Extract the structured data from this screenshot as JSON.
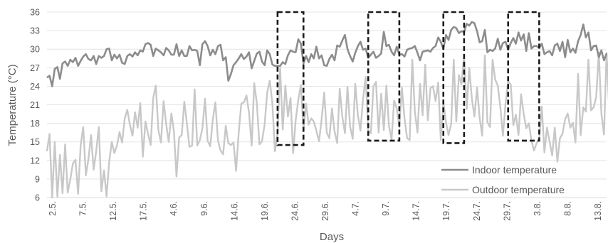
{
  "chart_data": {
    "type": "line",
    "title": "",
    "xlabel": "Days",
    "ylabel": "Temperature (°C)",
    "ylim": [
      6,
      36
    ],
    "yticks": [
      "6",
      "9",
      "12",
      "15",
      "18",
      "21",
      "24",
      "27",
      "30",
      "33",
      "36"
    ],
    "xticks": [
      "2.5.",
      "7.5.",
      "12.5.",
      "17.5.",
      "4.6.",
      "9.6.",
      "14.6.",
      "19.6.",
      "24.6.",
      "29.6.",
      "4.7.",
      "9.7.",
      "14.7.",
      "19.7.",
      "24.7.",
      "29.7.",
      "3.8.",
      "8.8.",
      "13.8."
    ],
    "grid": "horizontal",
    "legend": "bottom-right",
    "x_index_range": [
      0,
      216
    ],
    "series": [
      {
        "name": "Indoor temperature",
        "color": "#8c8c8c",
        "values": [
          25.4,
          25.7,
          24.0,
          26.8,
          27.1,
          25.2,
          27.7,
          28.0,
          27.3,
          28.3,
          27.9,
          28.6,
          27.3,
          28.1,
          28.8,
          29.2,
          28.4,
          28.2,
          28.9,
          27.6,
          28.9,
          28.6,
          28.9,
          30.0,
          30.1,
          28.2,
          29.1,
          28.5,
          29.1,
          27.8,
          27.6,
          28.9,
          29.2,
          28.8,
          29.5,
          29.0,
          29.8,
          29.6,
          30.8,
          31.0,
          30.7,
          28.9,
          30.1,
          29.8,
          29.5,
          29.0,
          30.2,
          29.8,
          29.1,
          29.1,
          30.8,
          28.9,
          29.8,
          28.9,
          28.9,
          30.5,
          29.8,
          29.9,
          29.7,
          27.4,
          30.8,
          31.3,
          30.5,
          29.0,
          29.9,
          29.2,
          30.5,
          30.7,
          28.2,
          28.7,
          24.9,
          26.0,
          27.4,
          27.9,
          28.5,
          29.2,
          28.4,
          28.8,
          29.5,
          26.9,
          28.1,
          29.3,
          29.6,
          28.0,
          27.4,
          29.8,
          29.2,
          27.5,
          27.3,
          27.3,
          27.3,
          27.9,
          27.6,
          29.0,
          29.8,
          29.6,
          29.5,
          31.6,
          30.9,
          27.7,
          28.9,
          27.9,
          29.2,
          28.5,
          30.4,
          28.5,
          29.0,
          27.4,
          27.3,
          28.4,
          29.1,
          28.2,
          30.6,
          30.4,
          31.4,
          32.3,
          30.0,
          28.9,
          28.0,
          29.4,
          30.5,
          31.2,
          29.9,
          30.1,
          28.6,
          29.1,
          29.6,
          28.6,
          28.9,
          29.3,
          32.8,
          30.5,
          30.7,
          29.6,
          29.0,
          30.4,
          29.1,
          29.2,
          28.8,
          29.9,
          30.1,
          30.2,
          30.5,
          29.4,
          28.2,
          29.6,
          29.7,
          29.8,
          29.6,
          30.2,
          30.5,
          31.9,
          31.2,
          30.0,
          32.3,
          31.5,
          33.1,
          33.6,
          33.4,
          32.6,
          32.9,
          32.8,
          34.1,
          33.8,
          34.4,
          34.2,
          32.9,
          31.1,
          31.3,
          33.1,
          29.5,
          29.9,
          29.7,
          30.1,
          31.7,
          29.9,
          31.0,
          31.2,
          29.9,
          31.0,
          31.8,
          30.9,
          32.7,
          31.4,
          32.4,
          29.7,
          32.6,
          30.1,
          30.5,
          30.5,
          30.2,
          30.9,
          29.2,
          29.5,
          29.7,
          29.0,
          30.6,
          30.9,
          29.7,
          31.2,
          28.7,
          31.5,
          29.5,
          30.1,
          29.4,
          31.3,
          32.3,
          34.0,
          31.9,
          32.7,
          29.8,
          30.5,
          30.6,
          28.7,
          29.8,
          28.2,
          29.3
        ]
      },
      {
        "name": "Outdoor temperature",
        "color": "#c8c8c8",
        "values": [
          13.5,
          16.3,
          6.0,
          15.0,
          6.1,
          12.9,
          6.7,
          14.6,
          6.8,
          9.0,
          11.5,
          12.1,
          6.6,
          14.5,
          17.4,
          9.6,
          12.2,
          16.1,
          10.5,
          13.5,
          17.4,
          7.0,
          10.4,
          6.2,
          11.7,
          15.0,
          13.2,
          14.4,
          16.6,
          14.9,
          18.8,
          20.2,
          17.8,
          16.0,
          19.8,
          17.3,
          21.3,
          12.6,
          18.3,
          16.3,
          14.5,
          22.1,
          24.1,
          16.9,
          14.9,
          21.6,
          17.9,
          15.0,
          19.6,
          16.7,
          9.4,
          15.7,
          16.1,
          21.5,
          18.0,
          14.2,
          14.4,
          23.5,
          14.4,
          15.3,
          17.2,
          22.0,
          15.2,
          14.3,
          18.6,
          21.4,
          15.2,
          13.6,
          13.0,
          17.6,
          14.8,
          14.5,
          14.9,
          10.3,
          16.5,
          21.2,
          21.4,
          22.5,
          19.7,
          14.4,
          24.5,
          21.2,
          14.6,
          15.1,
          17.8,
          23.0,
          24.9,
          21.2,
          13.5,
          16.4,
          27.0,
          17.0,
          24.1,
          19.1,
          22.1,
          13.2,
          18.5,
          21.8,
          24.2,
          16.9,
          21.2,
          17.8,
          18.8,
          18.3,
          16.8,
          15.1,
          18.6,
          23.0,
          16.5,
          15.6,
          20.4,
          16.7,
          14.8,
          23.6,
          19.1,
          16.4,
          23.9,
          17.5,
          15.5,
          24.4,
          19.3,
          16.8,
          21.9,
          25.5,
          16.9,
          16.4,
          24.0,
          24.7,
          16.5,
          22.8,
          16.9,
          24.1,
          17.6,
          15.4,
          21.7,
          20.4,
          17.4,
          23.8,
          18.8,
          15.6,
          15.3,
          28.3,
          19.9,
          16.5,
          24.4,
          19.3,
          27.5,
          18.5,
          23.7,
          24.0,
          21.6,
          24.6,
          15.3,
          21.4,
          18.2,
          16.1,
          17.9,
          28.3,
          18.3,
          25.8,
          24.3,
          29.0,
          20.3,
          27.0,
          22.0,
          19.1,
          23.8,
          18.9,
          16.0,
          29.0,
          18.2,
          17.4,
          28.3,
          25.1,
          24.1,
          20.6,
          16.0,
          21.2,
          24.8,
          24.3,
          17.7,
          19.4,
          16.1,
          22.7,
          19.5,
          17.2,
          18.0,
          15.2,
          13.6,
          14.8,
          15.4,
          20.7,
          13.3,
          17.3,
          15.1,
          12.8,
          17.3,
          11.8,
          15.6,
          16.3,
          18.7,
          19.6,
          17.3,
          18.1,
          14.9,
          26.0,
          16.1,
          20.6,
          19.9,
          28.3,
          20.1,
          20.6,
          22.2,
          29.5,
          19.6,
          16.2,
          29.4,
          20.6,
          26.1,
          27.0,
          31.2,
          25.3,
          24.9,
          28.5
        ]
      }
    ],
    "annotations": [
      {
        "type": "dashed-box",
        "x_index": [
          89,
          99
        ],
        "y": [
          14.5,
          36
        ]
      },
      {
        "type": "dashed-box",
        "x_index": [
          124,
          136
        ],
        "y": [
          15.2,
          36
        ]
      },
      {
        "type": "dashed-box",
        "x_index": [
          153,
          161
        ],
        "y": [
          14.8,
          36
        ]
      },
      {
        "type": "dashed-box",
        "x_index": [
          178,
          190
        ],
        "y": [
          15.2,
          36
        ]
      }
    ]
  }
}
